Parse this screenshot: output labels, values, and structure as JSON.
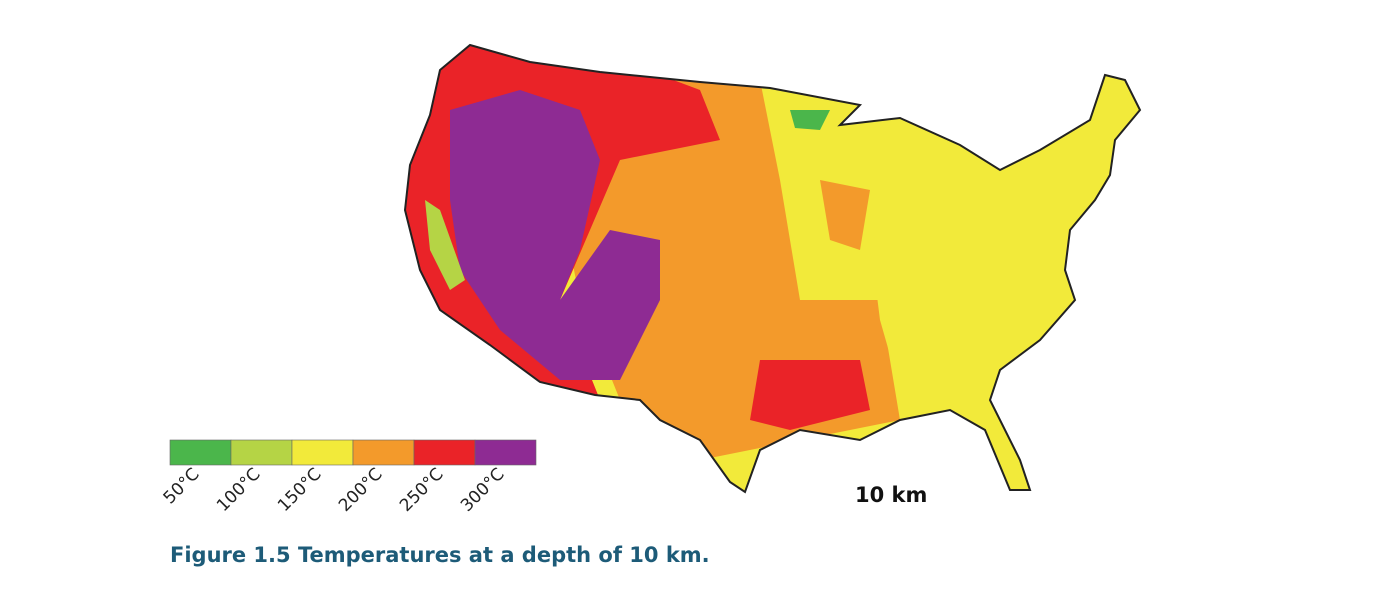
{
  "map": {
    "depth_label": "10 km"
  },
  "legend": {
    "items": [
      {
        "label": "50°C",
        "color": "#4bb64b"
      },
      {
        "label": "100°C",
        "color": "#b5d445"
      },
      {
        "label": "150°C",
        "color": "#f2ea3a"
      },
      {
        "label": "200°C",
        "color": "#f39a2b"
      },
      {
        "label": "250°C",
        "color": "#ea2328"
      },
      {
        "label": "300°C",
        "color": "#8e2b93"
      }
    ]
  },
  "caption": "Figure 1.5 Temperatures at a depth of 10 km."
}
